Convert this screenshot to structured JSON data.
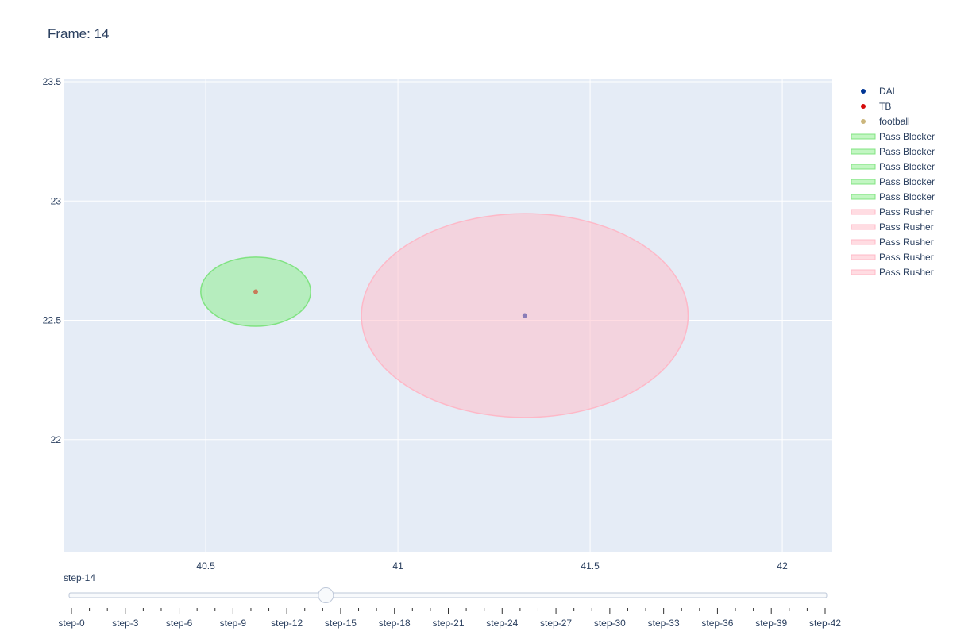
{
  "title": "Frame: 14",
  "colors": {
    "plot_bg": "#e5ecf6",
    "grid": "#ffffff",
    "DAL": "#003594",
    "TB": "#d50a0a",
    "football": "#cbb67c",
    "blocker_fill": "rgba(144,238,144,0.55)",
    "blocker_line": "rgba(120,225,120,0.9)",
    "rusher_fill": "rgba(255,192,203,0.55)",
    "rusher_line": "rgba(255,180,195,0.9)"
  },
  "chart_data": {
    "type": "scatter",
    "xlim": [
      40.13,
      42.13
    ],
    "ylim": [
      21.53,
      23.51
    ],
    "x_ticks": [
      40.5,
      41,
      41.5,
      42
    ],
    "x_tick_labels": [
      "40.5",
      "41",
      "41.5",
      "42"
    ],
    "y_ticks": [
      22,
      22.5,
      23,
      23.5
    ],
    "y_tick_labels": [
      "22",
      "22.5",
      "23",
      "23.5"
    ],
    "grid": true,
    "legend_position": "top-right",
    "points": [
      {
        "series": "DAL",
        "x": 41.33,
        "y": 22.52,
        "color": "#8a7cb8"
      },
      {
        "series": "TB",
        "x": 40.63,
        "y": 22.62,
        "color": "#c87a5a"
      }
    ],
    "ellipses": [
      {
        "series": "Pass Blocker",
        "cx": 40.63,
        "cy": 22.62,
        "rx": 0.143,
        "ry": 0.145
      },
      {
        "series": "Pass Rusher",
        "cx": 41.33,
        "cy": 22.52,
        "rx": 0.425,
        "ry": 0.427
      }
    ],
    "legend": [
      {
        "name": "DAL",
        "kind": "marker",
        "color": "#003594"
      },
      {
        "name": "TB",
        "kind": "marker",
        "color": "#d50a0a"
      },
      {
        "name": "football",
        "kind": "marker",
        "color": "#cbb67c"
      },
      {
        "name": "Pass Blocker",
        "kind": "fill",
        "group": "blocker"
      },
      {
        "name": "Pass Blocker",
        "kind": "fill",
        "group": "blocker"
      },
      {
        "name": "Pass Blocker",
        "kind": "fill",
        "group": "blocker"
      },
      {
        "name": "Pass Blocker",
        "kind": "fill",
        "group": "blocker"
      },
      {
        "name": "Pass Blocker",
        "kind": "fill",
        "group": "blocker"
      },
      {
        "name": "Pass Rusher",
        "kind": "fill",
        "group": "rusher"
      },
      {
        "name": "Pass Rusher",
        "kind": "fill",
        "group": "rusher"
      },
      {
        "name": "Pass Rusher",
        "kind": "fill",
        "group": "rusher"
      },
      {
        "name": "Pass Rusher",
        "kind": "fill",
        "group": "rusher"
      },
      {
        "name": "Pass Rusher",
        "kind": "fill",
        "group": "rusher"
      }
    ]
  },
  "slider": {
    "current_label": "step-14",
    "current_index": 14,
    "total_steps": 43,
    "labels": [
      "step-0",
      "step-3",
      "step-6",
      "step-9",
      "step-12",
      "step-15",
      "step-18",
      "step-21",
      "step-24",
      "step-27",
      "step-30",
      "step-33",
      "step-36",
      "step-39",
      "step-42"
    ],
    "label_indices": [
      0,
      3,
      6,
      9,
      12,
      15,
      18,
      21,
      24,
      27,
      30,
      33,
      36,
      39,
      42
    ]
  }
}
